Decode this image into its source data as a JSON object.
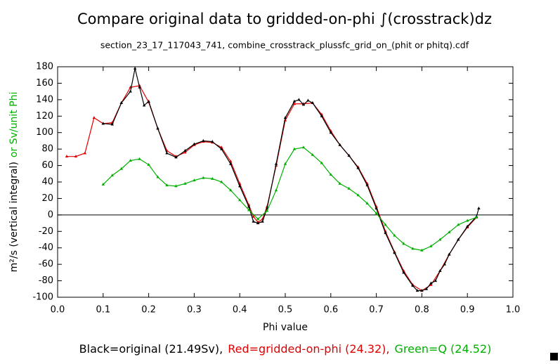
{
  "chart_data": {
    "type": "line",
    "title": "Compare original data to gridded-on-phi ∫(crosstrack)dz",
    "subtitle": "section_23_17_117043_741, combine_crosstrack_plussfc_grid_on_(phit or phitq).cdf",
    "x_label": "Phi value",
    "y_label": [
      {
        "text": "m²/s (vertical integral)",
        "color": "#000000"
      },
      {
        "text": "or Sv/unit Phi",
        "color": "#00b000"
      }
    ],
    "footer": [
      {
        "text": "Black=original (21.49Sv),",
        "color": "#000000"
      },
      {
        "text": "Red=gridded-on-phi (24.32),",
        "color": "#e00000"
      },
      {
        "text": "Green=Q (24.52)",
        "color": "#00b000"
      }
    ],
    "xlim": [
      0,
      1
    ],
    "xticks": [
      {
        "value": 0,
        "label": "0.0"
      },
      0.1,
      0.2,
      0.3,
      0.4,
      0.5,
      0.6,
      0.7,
      0.8,
      0.9,
      {
        "value": 1,
        "label": "1.0"
      }
    ],
    "ylim": [
      -100,
      180
    ],
    "yticks": [
      -100,
      -80,
      -60,
      -40,
      -20,
      0,
      20,
      40,
      60,
      80,
      100,
      120,
      140,
      160,
      180
    ],
    "series": [
      {
        "name": "gridded-on-phi",
        "color": "#e00000",
        "x": [
          0.02,
          0.04,
          0.06,
          0.08,
          0.1,
          0.12,
          0.14,
          0.16,
          0.18,
          0.2,
          0.22,
          0.24,
          0.26,
          0.28,
          0.3,
          0.32,
          0.34,
          0.36,
          0.38,
          0.4,
          0.42,
          0.43,
          0.44,
          0.45,
          0.46,
          0.48,
          0.5,
          0.52,
          0.54,
          0.56,
          0.58,
          0.6,
          0.62,
          0.64,
          0.66,
          0.68,
          0.7,
          0.72,
          0.74,
          0.76,
          0.78,
          0.8,
          0.82,
          0.84,
          0.86,
          0.88,
          0.9,
          0.92
        ],
        "values": [
          71,
          71,
          75,
          118,
          111,
          112,
          136,
          155,
          157,
          137,
          105,
          78,
          71,
          76,
          85,
          89,
          88,
          82,
          65,
          38,
          12,
          -2,
          -9,
          -5,
          10,
          60,
          115,
          135,
          135,
          136,
          122,
          102,
          85,
          72,
          58,
          38,
          10,
          -20,
          -45,
          -68,
          -85,
          -92,
          -85,
          -68,
          -48,
          -30,
          -15,
          -3
        ]
      },
      {
        "name": "original",
        "color": "#000000",
        "x": [
          0.1,
          0.12,
          0.14,
          0.16,
          0.17,
          0.18,
          0.19,
          0.2,
          0.22,
          0.24,
          0.26,
          0.28,
          0.3,
          0.32,
          0.34,
          0.36,
          0.38,
          0.4,
          0.42,
          0.43,
          0.44,
          0.45,
          0.46,
          0.48,
          0.5,
          0.52,
          0.53,
          0.54,
          0.55,
          0.56,
          0.58,
          0.6,
          0.62,
          0.64,
          0.66,
          0.68,
          0.7,
          0.72,
          0.74,
          0.76,
          0.78,
          0.79,
          0.8,
          0.81,
          0.82,
          0.83,
          0.84,
          0.85,
          0.86,
          0.88,
          0.9,
          0.92,
          0.925
        ],
        "values": [
          111,
          110,
          136,
          150,
          178,
          155,
          133,
          138,
          105,
          75,
          70,
          78,
          86,
          90,
          89,
          80,
          62,
          35,
          10,
          -8,
          -10,
          -8,
          8,
          62,
          118,
          138,
          140,
          134,
          139,
          136,
          120,
          100,
          85,
          72,
          57,
          36,
          8,
          -22,
          -46,
          -70,
          -86,
          -92,
          -92,
          -90,
          -83,
          -80,
          -68,
          -60,
          -48,
          -30,
          -14,
          -2,
          8
        ]
      },
      {
        "name": "Q",
        "color": "#00b000",
        "x": [
          0.1,
          0.12,
          0.14,
          0.16,
          0.18,
          0.2,
          0.22,
          0.24,
          0.26,
          0.28,
          0.3,
          0.32,
          0.34,
          0.36,
          0.38,
          0.4,
          0.42,
          0.44,
          0.46,
          0.48,
          0.5,
          0.52,
          0.54,
          0.56,
          0.58,
          0.6,
          0.62,
          0.64,
          0.66,
          0.68,
          0.7,
          0.72,
          0.74,
          0.76,
          0.78,
          0.8,
          0.82,
          0.84,
          0.86,
          0.88,
          0.9,
          0.92
        ],
        "values": [
          37,
          48,
          56,
          66,
          68,
          61,
          46,
          36,
          35,
          38,
          42,
          45,
          44,
          40,
          30,
          18,
          6,
          -5,
          5,
          30,
          62,
          80,
          82,
          73,
          63,
          49,
          38,
          32,
          24,
          14,
          2,
          -12,
          -25,
          -35,
          -41,
          -43,
          -38,
          -30,
          -21,
          -12,
          -7,
          -3
        ]
      }
    ]
  }
}
